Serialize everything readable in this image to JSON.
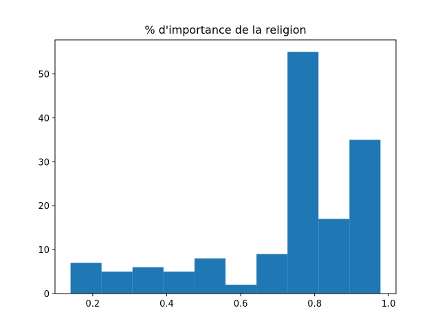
{
  "chart_data": {
    "type": "histogram",
    "title": "% d'importance de la religion",
    "xlabel": "",
    "ylabel": "",
    "bin_edges": [
      0.14,
      0.2238,
      0.3076,
      0.3914,
      0.4752,
      0.559,
      0.6428,
      0.7266,
      0.8104,
      0.8942,
      0.978
    ],
    "counts": [
      7,
      5,
      6,
      5,
      8,
      2,
      9,
      55,
      17,
      35
    ],
    "xlim": [
      0.098,
      1.02
    ],
    "ylim": [
      0,
      57.75
    ],
    "xticks": [
      0.2,
      0.4,
      0.6,
      0.8,
      1.0
    ],
    "xtick_labels": [
      "0.2",
      "0.4",
      "0.6",
      "0.8",
      "1.0"
    ],
    "yticks": [
      0,
      10,
      20,
      30,
      40,
      50
    ],
    "ytick_labels": [
      "0",
      "10",
      "20",
      "30",
      "40",
      "50"
    ],
    "bar_color": "#1f77b4",
    "grid": false,
    "legend": "none"
  }
}
